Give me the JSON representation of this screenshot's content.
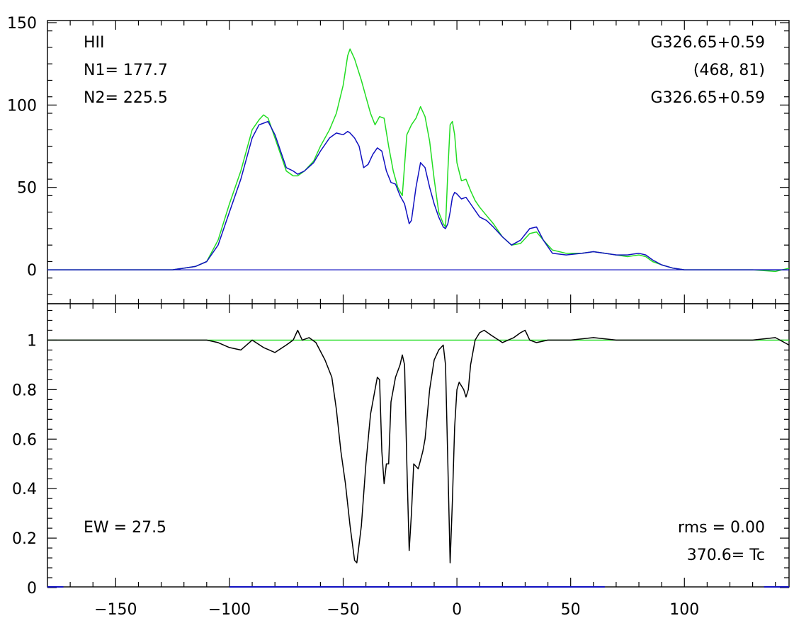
{
  "chart_data": [
    {
      "type": "line",
      "panel": "top",
      "title": "",
      "xlabel": "",
      "ylabel": "",
      "xlim": [
        -180,
        146
      ],
      "ylim": [
        -15,
        150
      ],
      "y_ticks": [
        0,
        50,
        100,
        150
      ],
      "colors": {
        "green": "#22dd22",
        "blue": "#1010c0",
        "baseline": "#1010c0"
      },
      "annotations": {
        "left": [
          "HII",
          "N1= 177.7",
          "N2= 225.5"
        ],
        "right": [
          "G326.65+0.59",
          "(468, 81)",
          "G326.65+0.59"
        ]
      },
      "series": [
        {
          "color_key": "green",
          "points": [
            [
              -180,
              0
            ],
            [
              -160,
              0
            ],
            [
              -140,
              0
            ],
            [
              -125,
              0
            ],
            [
              -115,
              2
            ],
            [
              -110,
              5
            ],
            [
              -105,
              18
            ],
            [
              -100,
              40
            ],
            [
              -95,
              60
            ],
            [
              -90,
              85
            ],
            [
              -87,
              91
            ],
            [
              -85,
              94
            ],
            [
              -83,
              92
            ],
            [
              -80,
              80
            ],
            [
              -77,
              68
            ],
            [
              -75,
              60
            ],
            [
              -72,
              57
            ],
            [
              -70,
              57
            ],
            [
              -67,
              60
            ],
            [
              -63,
              66
            ],
            [
              -60,
              75
            ],
            [
              -56,
              85
            ],
            [
              -53,
              95
            ],
            [
              -50,
              112
            ],
            [
              -48,
              130
            ],
            [
              -47,
              134
            ],
            [
              -45,
              128
            ],
            [
              -42,
              115
            ],
            [
              -40,
              105
            ],
            [
              -38,
              95
            ],
            [
              -36,
              88
            ],
            [
              -34,
              93
            ],
            [
              -32,
              92
            ],
            [
              -30,
              75
            ],
            [
              -28,
              60
            ],
            [
              -26,
              50
            ],
            [
              -24,
              45
            ],
            [
              -22,
              82
            ],
            [
              -20,
              88
            ],
            [
              -18,
              92
            ],
            [
              -16,
              99
            ],
            [
              -14,
              93
            ],
            [
              -12,
              78
            ],
            [
              -10,
              55
            ],
            [
              -8,
              35
            ],
            [
              -6,
              28
            ],
            [
              -5,
              26
            ],
            [
              -4,
              60
            ],
            [
              -3,
              88
            ],
            [
              -2,
              90
            ],
            [
              -1,
              82
            ],
            [
              0,
              65
            ],
            [
              2,
              54
            ],
            [
              4,
              55
            ],
            [
              6,
              48
            ],
            [
              8,
              42
            ],
            [
              10,
              38
            ],
            [
              13,
              33
            ],
            [
              16,
              28
            ],
            [
              20,
              20
            ],
            [
              24,
              15
            ],
            [
              28,
              16
            ],
            [
              32,
              22
            ],
            [
              35,
              23
            ],
            [
              38,
              18
            ],
            [
              42,
              12
            ],
            [
              48,
              10
            ],
            [
              55,
              10
            ],
            [
              60,
              11
            ],
            [
              65,
              10
            ],
            [
              70,
              9
            ],
            [
              75,
              8
            ],
            [
              80,
              9
            ],
            [
              83,
              8
            ],
            [
              86,
              5
            ],
            [
              90,
              3
            ],
            [
              95,
              1
            ],
            [
              100,
              0
            ],
            [
              110,
              0
            ],
            [
              120,
              0
            ],
            [
              130,
              0
            ],
            [
              140,
              -1
            ],
            [
              146,
              1
            ]
          ]
        },
        {
          "color_key": "blue",
          "points": [
            [
              -180,
              0
            ],
            [
              -160,
              0
            ],
            [
              -140,
              0
            ],
            [
              -125,
              0
            ],
            [
              -115,
              2
            ],
            [
              -110,
              5
            ],
            [
              -105,
              15
            ],
            [
              -100,
              35
            ],
            [
              -95,
              55
            ],
            [
              -90,
              80
            ],
            [
              -87,
              88
            ],
            [
              -85,
              89
            ],
            [
              -83,
              90
            ],
            [
              -80,
              82
            ],
            [
              -77,
              70
            ],
            [
              -75,
              62
            ],
            [
              -72,
              60
            ],
            [
              -70,
              58
            ],
            [
              -67,
              60
            ],
            [
              -63,
              65
            ],
            [
              -60,
              72
            ],
            [
              -56,
              80
            ],
            [
              -53,
              83
            ],
            [
              -50,
              82
            ],
            [
              -48,
              84
            ],
            [
              -47,
              83
            ],
            [
              -45,
              80
            ],
            [
              -43,
              75
            ],
            [
              -41,
              62
            ],
            [
              -39,
              64
            ],
            [
              -37,
              70
            ],
            [
              -35,
              74
            ],
            [
              -33,
              72
            ],
            [
              -31,
              60
            ],
            [
              -29,
              53
            ],
            [
              -27,
              52
            ],
            [
              -25,
              45
            ],
            [
              -23,
              40
            ],
            [
              -21,
              28
            ],
            [
              -20,
              30
            ],
            [
              -18,
              50
            ],
            [
              -16,
              65
            ],
            [
              -14,
              62
            ],
            [
              -12,
              50
            ],
            [
              -10,
              40
            ],
            [
              -8,
              32
            ],
            [
              -6,
              26
            ],
            [
              -5,
              25
            ],
            [
              -4,
              28
            ],
            [
              -3,
              35
            ],
            [
              -2,
              44
            ],
            [
              -1,
              47
            ],
            [
              0,
              46
            ],
            [
              2,
              43
            ],
            [
              4,
              44
            ],
            [
              6,
              40
            ],
            [
              8,
              36
            ],
            [
              10,
              32
            ],
            [
              13,
              30
            ],
            [
              16,
              26
            ],
            [
              20,
              20
            ],
            [
              24,
              15
            ],
            [
              28,
              18
            ],
            [
              32,
              25
            ],
            [
              35,
              26
            ],
            [
              38,
              18
            ],
            [
              42,
              10
            ],
            [
              48,
              9
            ],
            [
              55,
              10
            ],
            [
              60,
              11
            ],
            [
              65,
              10
            ],
            [
              70,
              9
            ],
            [
              75,
              9
            ],
            [
              80,
              10
            ],
            [
              83,
              9
            ],
            [
              86,
              6
            ],
            [
              90,
              3
            ],
            [
              95,
              1
            ],
            [
              100,
              0
            ],
            [
              110,
              0
            ],
            [
              120,
              0
            ],
            [
              130,
              0
            ],
            [
              140,
              0
            ],
            [
              146,
              0
            ]
          ]
        }
      ]
    },
    {
      "type": "line",
      "panel": "bottom",
      "title": "",
      "xlabel": "",
      "ylabel": "",
      "xlim": [
        -180,
        146
      ],
      "ylim": [
        0,
        1.15
      ],
      "y_ticks": [
        0,
        0.2,
        0.4,
        0.6,
        0.8,
        1
      ],
      "y_tick_labels": [
        "0",
        "0.2",
        "0.4",
        "0.6",
        "0.8",
        "1"
      ],
      "x_ticks": [
        -150,
        -100,
        -50,
        0,
        50,
        100
      ],
      "x_tick_labels": [
        "−150",
        "−100",
        "−50",
        "0",
        "50",
        "100"
      ],
      "colors": {
        "absorption": "#000000",
        "unity": "#22dd22",
        "segments": "#1010c0"
      },
      "annotations": {
        "left": [
          "EW =  27.5"
        ],
        "right": [
          "rms = 0.00",
          " 370.6= Tc"
        ]
      },
      "unity_level": 1,
      "blue_segments_at_zero": [
        [
          -180,
          -173
        ],
        [
          -100,
          65
        ],
        [
          135,
          146
        ]
      ],
      "series": [
        {
          "color_key": "absorption",
          "points": [
            [
              -180,
              1
            ],
            [
              -170,
              1
            ],
            [
              -160,
              1
            ],
            [
              -150,
              1
            ],
            [
              -140,
              1
            ],
            [
              -130,
              1
            ],
            [
              -120,
              1
            ],
            [
              -110,
              1
            ],
            [
              -105,
              0.99
            ],
            [
              -100,
              0.97
            ],
            [
              -95,
              0.96
            ],
            [
              -90,
              1
            ],
            [
              -85,
              0.97
            ],
            [
              -80,
              0.95
            ],
            [
              -75,
              0.98
            ],
            [
              -72,
              1
            ],
            [
              -70,
              1.04
            ],
            [
              -68,
              1
            ],
            [
              -65,
              1.01
            ],
            [
              -62,
              0.99
            ],
            [
              -58,
              0.92
            ],
            [
              -55,
              0.85
            ],
            [
              -53,
              0.72
            ],
            [
              -51,
              0.55
            ],
            [
              -49,
              0.42
            ],
            [
              -47,
              0.25
            ],
            [
              -45,
              0.11
            ],
            [
              -44,
              0.1
            ],
            [
              -42,
              0.25
            ],
            [
              -40,
              0.5
            ],
            [
              -38,
              0.7
            ],
            [
              -36,
              0.8
            ],
            [
              -35,
              0.85
            ],
            [
              -34,
              0.84
            ],
            [
              -33,
              0.55
            ],
            [
              -32,
              0.42
            ],
            [
              -31,
              0.5
            ],
            [
              -30,
              0.5
            ],
            [
              -29,
              0.75
            ],
            [
              -27,
              0.85
            ],
            [
              -25,
              0.9
            ],
            [
              -24,
              0.94
            ],
            [
              -23,
              0.9
            ],
            [
              -22,
              0.5
            ],
            [
              -21,
              0.15
            ],
            [
              -20,
              0.3
            ],
            [
              -19,
              0.5
            ],
            [
              -17,
              0.48
            ],
            [
              -15,
              0.55
            ],
            [
              -14,
              0.6
            ],
            [
              -12,
              0.8
            ],
            [
              -10,
              0.92
            ],
            [
              -8,
              0.96
            ],
            [
              -6,
              0.98
            ],
            [
              -5,
              0.9
            ],
            [
              -4,
              0.5
            ],
            [
              -3,
              0.1
            ],
            [
              -2,
              0.35
            ],
            [
              -1,
              0.65
            ],
            [
              0,
              0.8
            ],
            [
              1,
              0.83
            ],
            [
              3,
              0.8
            ],
            [
              4,
              0.77
            ],
            [
              5,
              0.8
            ],
            [
              6,
              0.9
            ],
            [
              8,
              1
            ],
            [
              10,
              1.03
            ],
            [
              12,
              1.04
            ],
            [
              15,
              1.02
            ],
            [
              20,
              0.99
            ],
            [
              25,
              1.01
            ],
            [
              28,
              1.03
            ],
            [
              30,
              1.04
            ],
            [
              32,
              1
            ],
            [
              35,
              0.99
            ],
            [
              40,
              1
            ],
            [
              50,
              1
            ],
            [
              60,
              1.01
            ],
            [
              70,
              1
            ],
            [
              80,
              1
            ],
            [
              90,
              1
            ],
            [
              100,
              1
            ],
            [
              110,
              1
            ],
            [
              120,
              1
            ],
            [
              130,
              1
            ],
            [
              140,
              1.01
            ],
            [
              146,
              0.98
            ]
          ]
        }
      ]
    }
  ]
}
